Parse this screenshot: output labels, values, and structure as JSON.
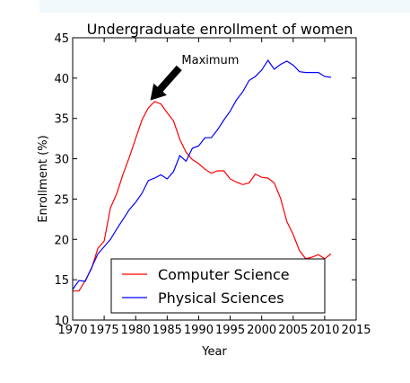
{
  "chart_data": {
    "type": "line",
    "title": "Undergraduate enrollment of women",
    "xlabel": "Year",
    "ylabel": "Enrollment (%)",
    "xlim": [
      1970,
      2015
    ],
    "ylim": [
      10,
      45
    ],
    "x_ticks": [
      1970,
      1975,
      1980,
      1985,
      1990,
      1995,
      2000,
      2005,
      2010,
      2015
    ],
    "y_ticks": [
      10,
      15,
      20,
      25,
      30,
      35,
      40,
      45
    ],
    "series": [
      {
        "name": "Computer Science",
        "color": "#ff0000",
        "x": [
          1970,
          1971,
          1972,
          1973,
          1974,
          1975,
          1976,
          1977,
          1978,
          1979,
          1980,
          1981,
          1982,
          1983,
          1984,
          1985,
          1986,
          1987,
          1988,
          1989,
          1990,
          1991,
          1992,
          1993,
          1994,
          1995,
          1996,
          1997,
          1998,
          1999,
          2000,
          2001,
          2002,
          2003,
          2004,
          2005,
          2006,
          2007,
          2008,
          2009,
          2010,
          2011
        ],
        "values": [
          13.6,
          13.6,
          14.9,
          16.4,
          18.9,
          19.8,
          23.9,
          25.7,
          28.1,
          30.2,
          32.5,
          34.8,
          36.3,
          37.1,
          36.8,
          35.7,
          34.7,
          32.4,
          30.8,
          29.9,
          29.4,
          28.7,
          28.2,
          28.5,
          28.5,
          27.5,
          27.1,
          26.8,
          27.0,
          28.1,
          27.7,
          27.6,
          27.0,
          25.1,
          22.2,
          20.6,
          18.6,
          17.6,
          17.8,
          18.1,
          17.6,
          18.2
        ]
      },
      {
        "name": "Physical Sciences",
        "color": "#0000ff",
        "x": [
          1970,
          1971,
          1972,
          1973,
          1974,
          1975,
          1976,
          1977,
          1978,
          1979,
          1980,
          1981,
          1982,
          1983,
          1984,
          1985,
          1986,
          1987,
          1988,
          1989,
          1990,
          1991,
          1992,
          1993,
          1994,
          1995,
          1996,
          1997,
          1998,
          1999,
          2000,
          2001,
          2002,
          2003,
          2004,
          2005,
          2006,
          2007,
          2008,
          2009,
          2010,
          2011
        ],
        "values": [
          13.8,
          14.9,
          14.8,
          16.5,
          18.2,
          19.1,
          20.0,
          21.3,
          22.5,
          23.7,
          24.6,
          25.7,
          27.3,
          27.6,
          28.0,
          27.5,
          28.4,
          30.4,
          29.7,
          31.3,
          31.6,
          32.6,
          32.6,
          33.6,
          34.8,
          35.9,
          37.3,
          38.3,
          39.7,
          40.2,
          41.0,
          42.2,
          41.1,
          41.7,
          42.1,
          41.6,
          40.8,
          40.7,
          40.7,
          40.7,
          40.2,
          40.1
        ]
      }
    ],
    "annotations": [
      {
        "text": "Maximum",
        "xy": [
          1982.7,
          37.1
        ],
        "xytext": [
          1988,
          42
        ]
      }
    ],
    "legend": {
      "placement": "lower-center",
      "entries": [
        "Computer Science",
        "Physical Sciences"
      ]
    },
    "grid": false
  }
}
